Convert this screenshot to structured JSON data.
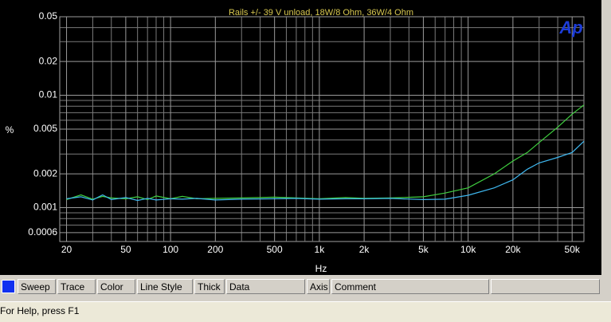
{
  "chart_data": {
    "type": "line",
    "title": "Rails +/- 39 V unload, 18W/8 Ohm, 36W/4 Ohm",
    "logo": "Ap",
    "x_label": "Hz",
    "y_label": "%",
    "x_log": true,
    "y_log": true,
    "grid": true,
    "xlim": [
      18,
      60000
    ],
    "ylim": [
      0.0005,
      0.05
    ],
    "xticks": [
      20,
      50,
      100,
      200,
      500,
      {
        "value": 1000,
        "label": "1k"
      },
      {
        "value": 2000,
        "label": "2k"
      },
      {
        "value": 5000,
        "label": "5k"
      },
      {
        "value": 10000,
        "label": "10k"
      },
      {
        "value": 20000,
        "label": "20k"
      },
      {
        "value": 50000,
        "label": "50k"
      }
    ],
    "yticks": [
      0.0006,
      0.001,
      0.002,
      0.005,
      0.01,
      0.02,
      0.05
    ],
    "x_minor_ticks": [
      30,
      40,
      60,
      70,
      80,
      90,
      300,
      400,
      600,
      700,
      800,
      900,
      3000,
      4000,
      6000,
      7000,
      8000,
      9000,
      30000,
      40000
    ],
    "y_minor_ticks": [
      0.0007,
      0.0008,
      0.0009,
      0.003,
      0.004,
      0.006,
      0.007,
      0.008,
      0.009,
      0.03,
      0.04
    ],
    "x": [
      20,
      25,
      30,
      35,
      40,
      50,
      60,
      70,
      80,
      100,
      120,
      150,
      200,
      300,
      500,
      700,
      1000,
      1500,
      2000,
      3000,
      5000,
      7000,
      10000,
      15000,
      20000,
      25000,
      30000,
      40000,
      50000,
      60000
    ],
    "series": [
      {
        "color": "#3fcf3f",
        "values": [
          0.00118,
          0.0013,
          0.00119,
          0.00126,
          0.00122,
          0.0012,
          0.00125,
          0.00118,
          0.00127,
          0.0012,
          0.00126,
          0.0012,
          0.00121,
          0.00122,
          0.00124,
          0.00122,
          0.0012,
          0.00123,
          0.00121,
          0.00122,
          0.00125,
          0.00135,
          0.0015,
          0.002,
          0.0026,
          0.0031,
          0.0038,
          0.0052,
          0.0068,
          0.0082
        ]
      },
      {
        "color": "#3fb8f0",
        "values": [
          0.0012,
          0.00125,
          0.00117,
          0.0013,
          0.00118,
          0.00123,
          0.00116,
          0.00121,
          0.00117,
          0.0012,
          0.00119,
          0.00121,
          0.00117,
          0.00119,
          0.0012,
          0.00121,
          0.00119,
          0.0012,
          0.0012,
          0.00121,
          0.00118,
          0.00119,
          0.00129,
          0.0015,
          0.00177,
          0.0022,
          0.0025,
          0.0028,
          0.0031,
          0.0039
        ]
      }
    ]
  },
  "table": {
    "headers": [
      "Sweep",
      "Trace",
      "Color",
      "Line Style",
      "Thick",
      "Data",
      "Axis",
      "Comment"
    ]
  },
  "status_bar": "For Help, press F1"
}
